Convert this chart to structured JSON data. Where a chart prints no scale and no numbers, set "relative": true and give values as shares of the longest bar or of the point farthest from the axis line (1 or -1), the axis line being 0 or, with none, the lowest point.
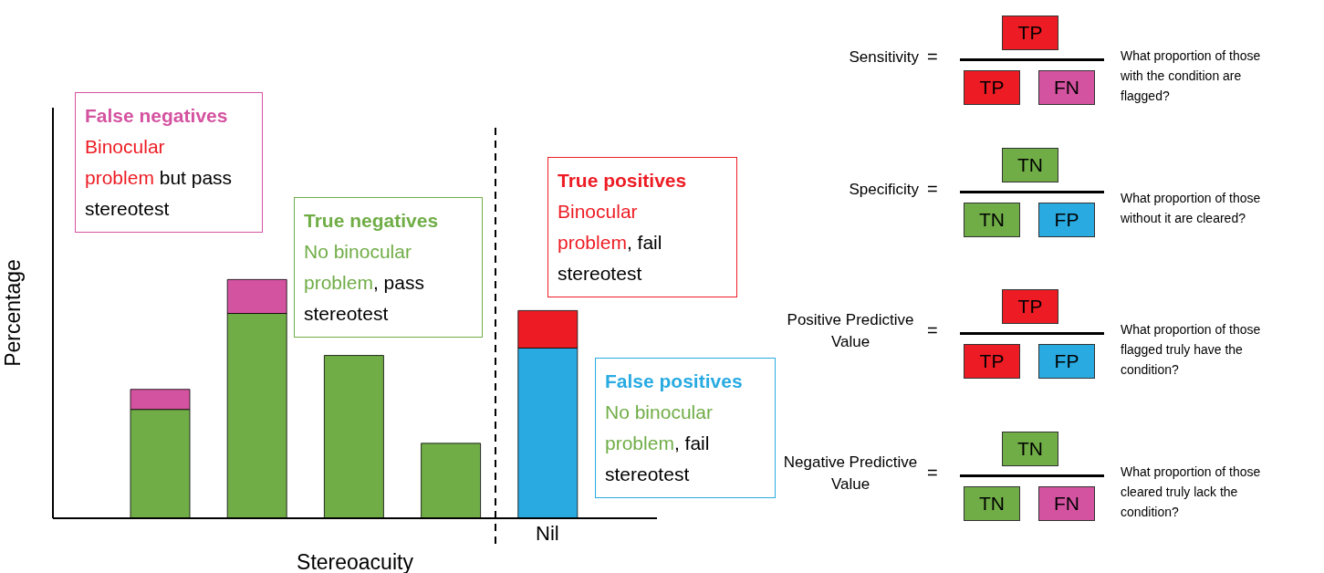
{
  "chart_data": [
    {
      "type": "bar",
      "stacked": true,
      "relative": true,
      "xlabel": "Stereoacuity",
      "ylabel": "Percentage",
      "categories": [
        null,
        null,
        null,
        null,
        "Nil"
      ],
      "series": [
        {
          "color": "#70ad47",
          "values": [
            0.456,
            0.858,
            0.682,
            0.314,
            null
          ]
        },
        {
          "color": "#d453a0",
          "values": [
            0.084,
            0.142,
            null,
            null,
            null
          ]
        },
        {
          "color": "#29abe2",
          "values": [
            null,
            null,
            null,
            null,
            0.713
          ]
        },
        {
          "color": "#ed1c24",
          "values": [
            null,
            null,
            null,
            null,
            0.157
          ]
        }
      ],
      "annotations": [
        "False negatives",
        "Binocular problem",
        "but pass stereotest",
        "True negatives",
        "No binocular problem",
        ", pass stereotest",
        "True positives",
        "Binocular problem",
        ", fail stereotest",
        "False positives",
        "No binocular problem",
        ", fail stereotest"
      ]
    },
    {
      "type": "other",
      "annotations": [
        "Sensitivity",
        "=",
        "TP",
        "TP",
        "FN",
        "What proportion of those with the condition are flagged?",
        "Specificity",
        "=",
        "TN",
        "TN",
        "FP",
        "What proportion of those without it are cleared?",
        "Positive Predictive Value",
        "=",
        "TP",
        "TP",
        "FP",
        "What proportion of those flagged truly have the condition?",
        "Negative Predictive Value",
        "=",
        "TN",
        "TN",
        "FN",
        "What proportion of those cleared truly lack the condition?"
      ]
    }
  ]
}
